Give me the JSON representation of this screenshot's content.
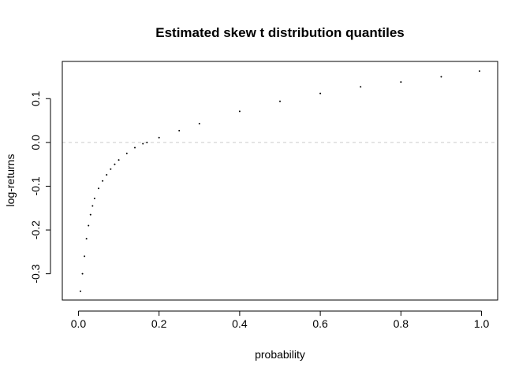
{
  "chart_data": {
    "type": "scatter",
    "title": "Estimated skew t distribution quantiles",
    "xlabel": "probability",
    "ylabel": "log-returns",
    "xlim": [
      -0.04,
      1.04
    ],
    "ylim": [
      -0.36,
      0.185
    ],
    "x_ticks": [
      "0.0",
      "0.2",
      "0.4",
      "0.6",
      "0.8",
      "1.0"
    ],
    "y_ticks": [
      "-0.3",
      "-0.2",
      "-0.1",
      "0.0",
      "0.1"
    ],
    "reference_line": {
      "y": 0,
      "style": "dashed",
      "color": "#cccccc"
    },
    "series": [
      {
        "color": "#000000",
        "x": [
          0.005,
          0.01,
          0.015,
          0.02,
          0.025,
          0.03,
          0.035,
          0.04,
          0.05,
          0.06,
          0.07,
          0.08,
          0.09,
          0.1,
          0.12,
          0.14,
          0.16,
          0.17,
          0.2,
          0.25,
          0.3,
          0.4,
          0.5,
          0.6,
          0.7,
          0.8,
          0.9,
          0.995
        ],
        "y": [
          -0.34,
          -0.3,
          -0.26,
          -0.22,
          -0.19,
          -0.165,
          -0.145,
          -0.128,
          -0.105,
          -0.088,
          -0.074,
          -0.061,
          -0.05,
          -0.04,
          -0.025,
          -0.012,
          -0.003,
          0.0,
          0.011,
          0.027,
          0.043,
          0.071,
          0.094,
          0.112,
          0.127,
          0.138,
          0.15,
          0.163
        ]
      }
    ]
  }
}
